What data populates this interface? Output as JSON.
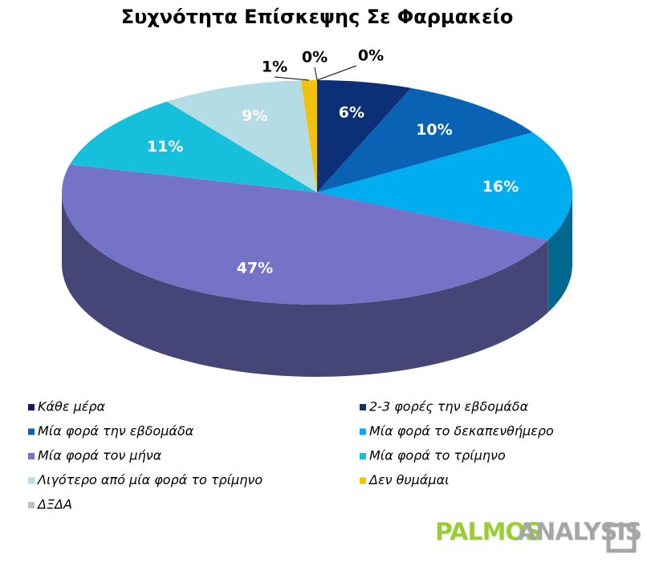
{
  "chart_data": {
    "type": "pie3d",
    "title": "Συχνότητα Επίσκεψης Σε Φαρμακείο",
    "categories": [
      "Κάθε μέρα",
      "2-3 φορές την εβδομάδα",
      "Μία φορά την εβδομάδα",
      "Μία φορά το δεκαπενθήμερο",
      "Μία φορά τον μήνα",
      "Μία φορά το τρίμηνο",
      "Λιγότερο από μία φορά το τρίμηνο",
      "Δεν θυμάμαι",
      "ΔΞΔΑ"
    ],
    "values": [
      0,
      6,
      10,
      16,
      47,
      11,
      9,
      1,
      0
    ],
    "value_labels": [
      "0%",
      "6%",
      "10%",
      "16%",
      "47%",
      "11%",
      "9%",
      "1%",
      "0%"
    ],
    "colors": [
      "#0b1f5c",
      "#0c2f78",
      "#0a62b4",
      "#00aeef",
      "#7473c8",
      "#16c0dc",
      "#b3dce4",
      "#f2c00e",
      "#bfbfbf"
    ],
    "legend": "bottom"
  },
  "logo": {
    "left": "PALMOS",
    "right": "ANALYSIS"
  }
}
